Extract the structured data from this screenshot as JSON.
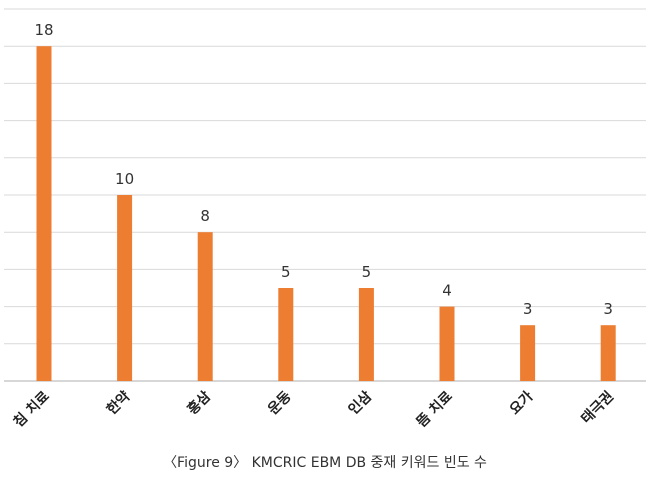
{
  "caption": "〈Figure 9〉 KMCRIC EBM DB 중재 키워드 빈도 수",
  "chart_data": {
    "type": "bar",
    "title": "",
    "xlabel": "",
    "ylabel": "",
    "categories": [
      "침 치료",
      "한약",
      "홍삼",
      "운동",
      "인삼",
      "뜸 치료",
      "요가",
      "태극권"
    ],
    "values": [
      18,
      10,
      8,
      5,
      5,
      4,
      3,
      3
    ],
    "ylim": [
      0,
      20
    ],
    "grid": true,
    "legend": "none",
    "bar_color": "#ed7d31"
  }
}
